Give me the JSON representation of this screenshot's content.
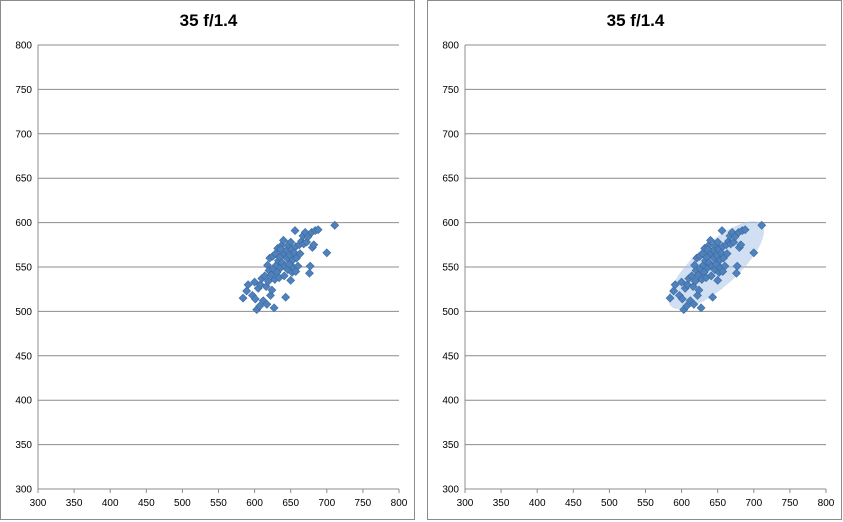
{
  "chart_data": [
    {
      "type": "scatter",
      "title": "35 f/1.4",
      "xlabel": "",
      "ylabel": "",
      "xlim": [
        300,
        800
      ],
      "ylim": [
        300,
        800
      ],
      "x_ticks": [
        300,
        350,
        400,
        450,
        500,
        550,
        600,
        650,
        700,
        750,
        800
      ],
      "y_ticks": [
        300,
        350,
        400,
        450,
        500,
        550,
        600,
        650,
        700,
        750,
        800
      ],
      "grid": "horizontal",
      "legend": "none",
      "marker": "diamond",
      "color": "#4f81bd",
      "highlight_ellipse": false,
      "series": [
        {
          "points": [
            [
              584,
              515
            ],
            [
              589,
              523
            ],
            [
              591,
              530
            ],
            [
              597,
              518
            ],
            [
              600,
              533
            ],
            [
              601,
              514
            ],
            [
              603,
              502
            ],
            [
              605,
              526
            ],
            [
              607,
              506
            ],
            [
              608,
              530
            ],
            [
              610,
              537
            ],
            [
              612,
              512
            ],
            [
              614,
              540
            ],
            [
              616,
              528
            ],
            [
              617,
              508
            ],
            [
              618,
              552
            ],
            [
              619,
              534
            ],
            [
              620,
              546
            ],
            [
              621,
              560
            ],
            [
              622,
              518
            ],
            [
              623,
              541
            ],
            [
              624,
              524
            ],
            [
              625,
              562
            ],
            [
              626,
              548
            ],
            [
              627,
              504
            ],
            [
              628,
              536
            ],
            [
              629,
              565
            ],
            [
              630,
              552
            ],
            [
              631,
              544
            ],
            [
              632,
              571
            ],
            [
              633,
              557
            ],
            [
              634,
              538
            ],
            [
              635,
              561
            ],
            [
              636,
              549
            ],
            [
              637,
              574
            ],
            [
              638,
              555
            ],
            [
              640,
              566
            ],
            [
              641,
              540
            ],
            [
              642,
              551
            ],
            [
              643,
              516
            ],
            [
              644,
              569
            ],
            [
              645,
              560
            ],
            [
              646,
              547
            ],
            [
              647,
              575
            ],
            [
              648,
              553
            ],
            [
              649,
              563
            ],
            [
              650,
              535
            ],
            [
              651,
              570
            ],
            [
              652,
              544
            ],
            [
              653,
              558
            ],
            [
              654,
              549
            ],
            [
              655,
              566
            ],
            [
              656,
              591
            ],
            [
              657,
              573
            ],
            [
              658,
              560
            ],
            [
              660,
              551
            ],
            [
              662,
              575
            ],
            [
              663,
              565
            ],
            [
              665,
              579
            ],
            [
              667,
              585
            ],
            [
              668,
              576
            ],
            [
              670,
              589
            ],
            [
              672,
              578
            ],
            [
              674,
              584
            ],
            [
              676,
              543
            ],
            [
              677,
              551
            ],
            [
              679,
              589
            ],
            [
              680,
              572
            ],
            [
              682,
              575
            ],
            [
              684,
              591
            ],
            [
              688,
              592
            ],
            [
              700,
              566
            ],
            [
              711,
              597
            ],
            [
              640,
              580
            ],
            [
              650,
              578
            ],
            [
              636,
              570
            ],
            [
              657,
              545
            ]
          ]
        }
      ]
    },
    {
      "type": "scatter",
      "title": "35 f/1.4",
      "xlabel": "",
      "ylabel": "",
      "xlim": [
        300,
        800
      ],
      "ylim": [
        300,
        800
      ],
      "x_ticks": [
        300,
        350,
        400,
        450,
        500,
        550,
        600,
        650,
        700,
        750,
        800
      ],
      "y_ticks": [
        300,
        350,
        400,
        450,
        500,
        550,
        600,
        650,
        700,
        750,
        800
      ],
      "grid": "horizontal",
      "legend": "none",
      "marker": "diamond",
      "color": "#4f81bd",
      "highlight_ellipse": true,
      "ellipse": {
        "center": [
          648,
          552
        ],
        "semi_major": 76,
        "semi_minor": 27,
        "angle_deg": 42,
        "color": "#a9c4e6"
      },
      "series": [
        {
          "points": [
            [
              584,
              515
            ],
            [
              589,
              523
            ],
            [
              591,
              530
            ],
            [
              597,
              518
            ],
            [
              600,
              533
            ],
            [
              601,
              514
            ],
            [
              603,
              502
            ],
            [
              605,
              526
            ],
            [
              607,
              506
            ],
            [
              608,
              530
            ],
            [
              610,
              537
            ],
            [
              612,
              512
            ],
            [
              614,
              540
            ],
            [
              616,
              528
            ],
            [
              617,
              508
            ],
            [
              618,
              552
            ],
            [
              619,
              534
            ],
            [
              620,
              546
            ],
            [
              621,
              560
            ],
            [
              622,
              518
            ],
            [
              623,
              541
            ],
            [
              624,
              524
            ],
            [
              625,
              562
            ],
            [
              626,
              548
            ],
            [
              627,
              504
            ],
            [
              628,
              536
            ],
            [
              629,
              565
            ],
            [
              630,
              552
            ],
            [
              631,
              544
            ],
            [
              632,
              571
            ],
            [
              633,
              557
            ],
            [
              634,
              538
            ],
            [
              635,
              561
            ],
            [
              636,
              549
            ],
            [
              637,
              574
            ],
            [
              638,
              555
            ],
            [
              640,
              566
            ],
            [
              641,
              540
            ],
            [
              642,
              551
            ],
            [
              643,
              516
            ],
            [
              644,
              569
            ],
            [
              645,
              560
            ],
            [
              646,
              547
            ],
            [
              647,
              575
            ],
            [
              648,
              553
            ],
            [
              649,
              563
            ],
            [
              650,
              535
            ],
            [
              651,
              570
            ],
            [
              652,
              544
            ],
            [
              653,
              558
            ],
            [
              654,
              549
            ],
            [
              655,
              566
            ],
            [
              656,
              591
            ],
            [
              657,
              573
            ],
            [
              658,
              560
            ],
            [
              660,
              551
            ],
            [
              662,
              575
            ],
            [
              663,
              565
            ],
            [
              665,
              579
            ],
            [
              667,
              585
            ],
            [
              668,
              576
            ],
            [
              670,
              589
            ],
            [
              672,
              578
            ],
            [
              674,
              584
            ],
            [
              676,
              543
            ],
            [
              677,
              551
            ],
            [
              679,
              589
            ],
            [
              680,
              572
            ],
            [
              682,
              575
            ],
            [
              684,
              591
            ],
            [
              688,
              592
            ],
            [
              700,
              566
            ],
            [
              711,
              597
            ],
            [
              640,
              580
            ],
            [
              650,
              578
            ],
            [
              636,
              570
            ],
            [
              657,
              545
            ]
          ]
        }
      ]
    }
  ]
}
